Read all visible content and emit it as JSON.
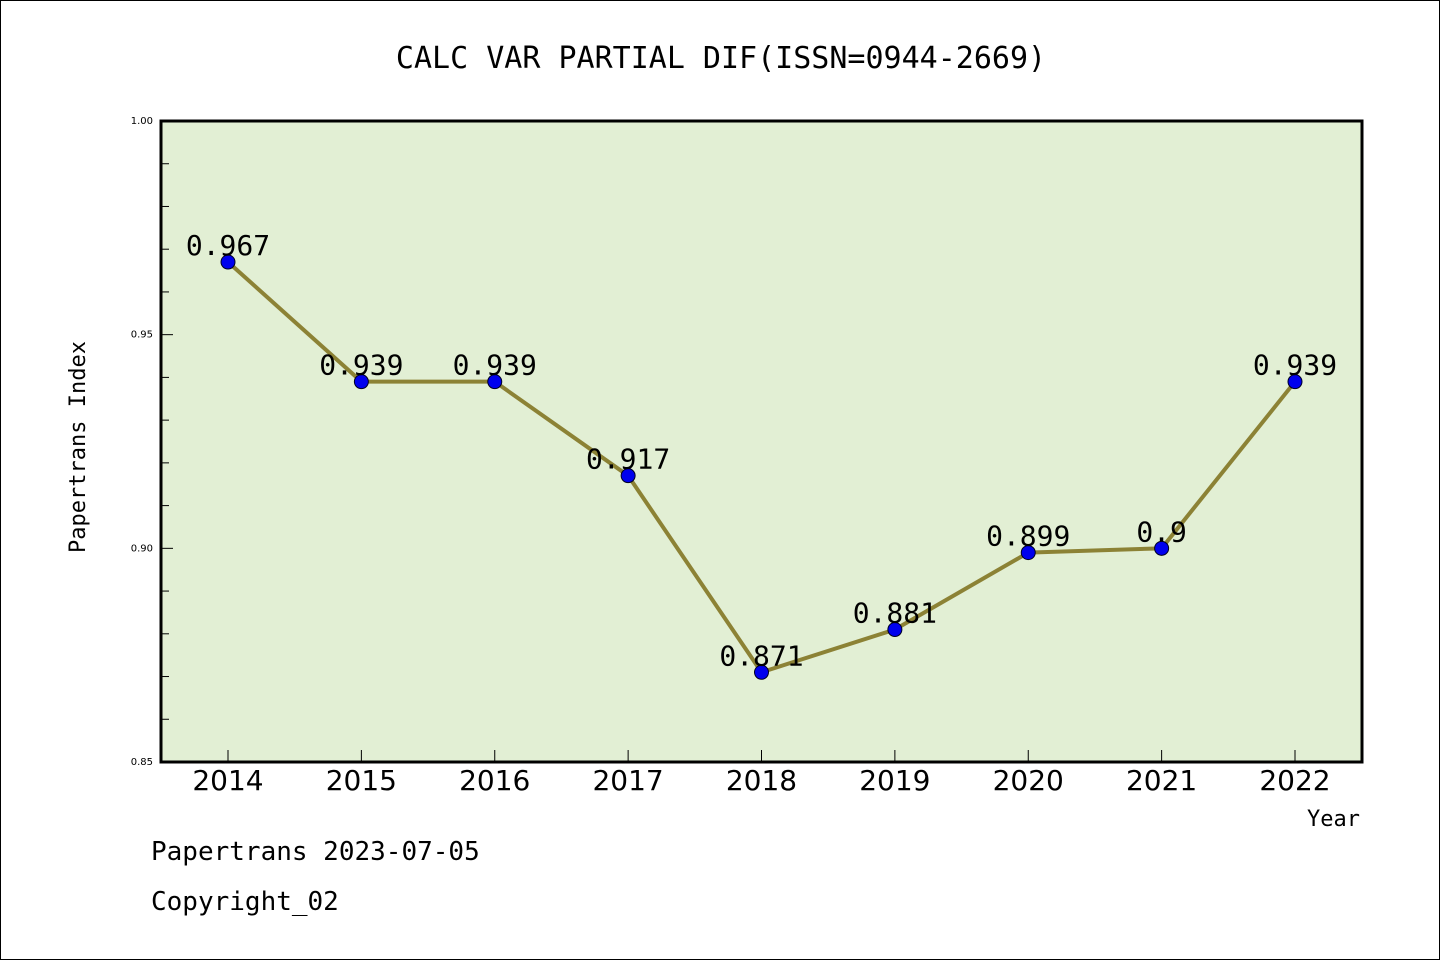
{
  "colors": {
    "plot_background": "#e2efd4",
    "line": "#8c8235",
    "marker": "#0000ee",
    "frame": "#000000"
  },
  "footer": {
    "line1": "Papertrans 2023-07-05",
    "line2": "Copyright_02"
  },
  "chart_data": {
    "type": "line",
    "title": "CALC VAR PARTIAL DIF(ISSN=0944-2669)",
    "xlabel": "Year",
    "ylabel": "Papertrans Index",
    "categories": [
      "2014",
      "2015",
      "2016",
      "2017",
      "2018",
      "2019",
      "2020",
      "2021",
      "2022"
    ],
    "series": [
      {
        "values": [
          0.967,
          0.939,
          0.939,
          0.917,
          0.871,
          0.881,
          0.899,
          0.9,
          0.939
        ],
        "labels": [
          "0.967",
          "0.939",
          "0.939",
          "0.917",
          "0.871",
          "0.881",
          "0.899",
          "0.9",
          "0.939"
        ]
      }
    ],
    "ylim": [
      0.85,
      1.0
    ],
    "yticks": [
      "0.85",
      "0.90",
      "0.95",
      "1.00"
    ],
    "yminor_step": 0.01,
    "grid": false,
    "legend": "none"
  }
}
